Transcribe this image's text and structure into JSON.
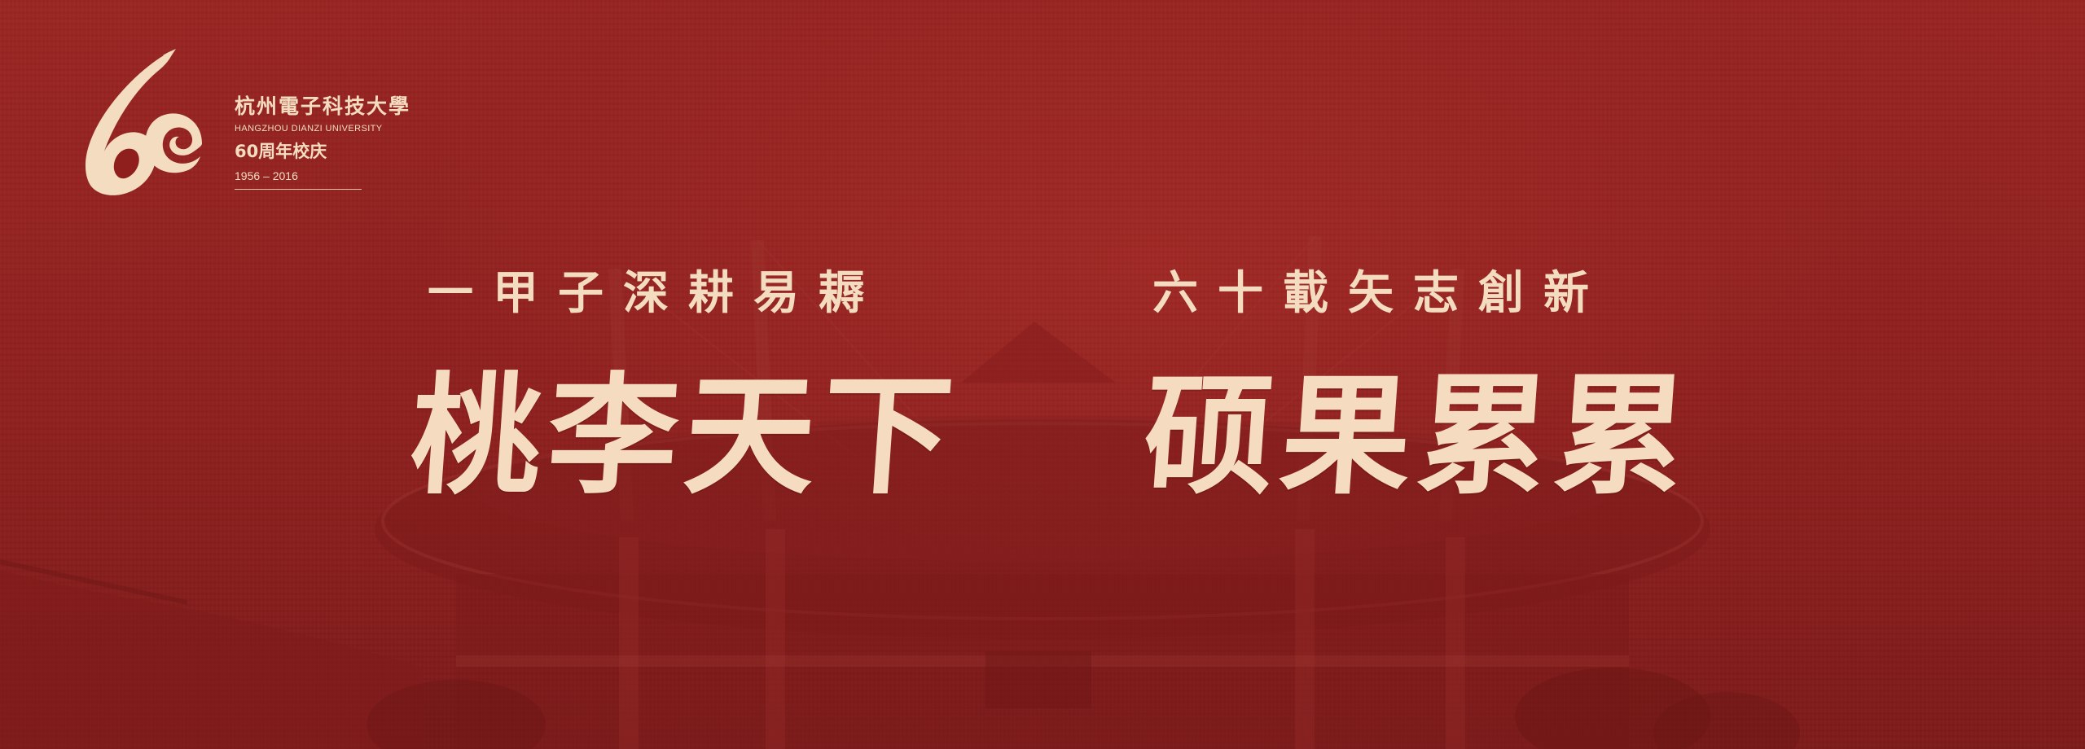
{
  "logo": {
    "mark": "6C",
    "university_cn": "杭州電子科技大學",
    "university_en": "HANGZHOU DIANZI UNIVERSITY",
    "anniversary": "60周年校庆",
    "years": "1956 – 2016"
  },
  "slogans": {
    "top_left": "一甲子深耕易耨",
    "top_right": "六十載矢志創新",
    "main_left": "桃李天下",
    "main_right": "硕果累累"
  },
  "colors": {
    "background": "#8e1f1d",
    "text": "#f3dcc0"
  }
}
